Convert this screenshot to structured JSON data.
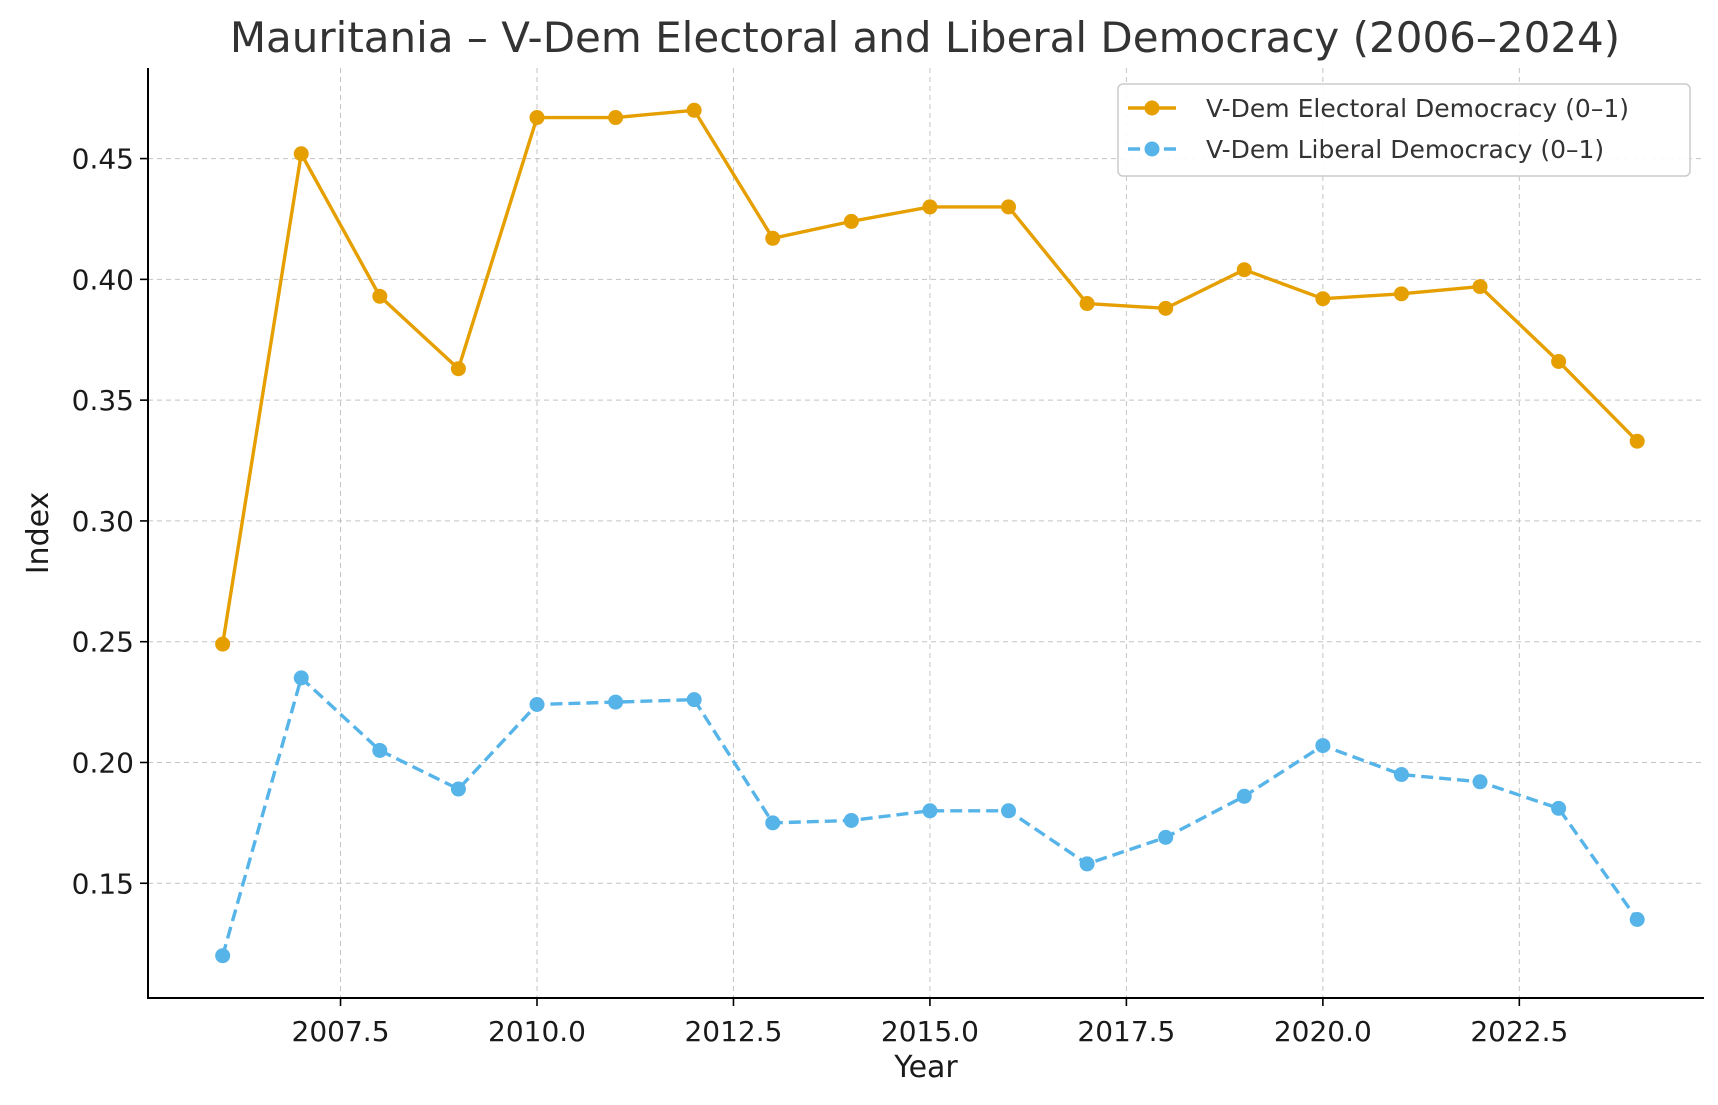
{
  "chart_data": {
    "type": "line",
    "title": "Mauritania – V-Dem Electoral and Liberal Democracy (2006–2024)",
    "xlabel": "Year",
    "ylabel": "Index",
    "x": [
      2006,
      2007,
      2008,
      2009,
      2010,
      2011,
      2012,
      2013,
      2014,
      2015,
      2016,
      2017,
      2018,
      2019,
      2020,
      2021,
      2022,
      2023,
      2024
    ],
    "series": [
      {
        "name": "V-Dem Electoral Democracy (0–1)",
        "color": "#E69F00",
        "line_style": "solid",
        "marker": "circle",
        "values": [
          0.249,
          0.452,
          0.393,
          0.363,
          0.467,
          0.467,
          0.47,
          0.417,
          0.424,
          0.43,
          0.43,
          0.39,
          0.388,
          0.404,
          0.392,
          0.394,
          0.397,
          0.366,
          0.333
        ]
      },
      {
        "name": "V-Dem Liberal Democracy (0–1)",
        "color": "#56B4E9",
        "line_style": "dashed",
        "marker": "circle",
        "values": [
          0.12,
          0.235,
          0.205,
          0.189,
          0.224,
          0.225,
          0.226,
          0.175,
          0.176,
          0.18,
          0.18,
          0.158,
          0.169,
          0.186,
          0.207,
          0.195,
          0.192,
          0.181,
          0.135
        ]
      }
    ],
    "xlim": [
      2005.05,
      2024.85
    ],
    "ylim": [
      0.1025,
      0.4875
    ],
    "x_ticks": [
      2007.5,
      2010.0,
      2012.5,
      2015.0,
      2017.5,
      2020.0,
      2022.5
    ],
    "x_tick_labels": [
      "2007.5",
      "2010.0",
      "2012.5",
      "2015.0",
      "2017.5",
      "2020.0",
      "2022.5"
    ],
    "y_ticks": [
      0.15,
      0.2,
      0.25,
      0.3,
      0.35,
      0.4,
      0.45
    ],
    "y_tick_labels": [
      "0.15",
      "0.20",
      "0.25",
      "0.30",
      "0.35",
      "0.40",
      "0.45"
    ],
    "grid": true,
    "legend_position": "top-right"
  }
}
